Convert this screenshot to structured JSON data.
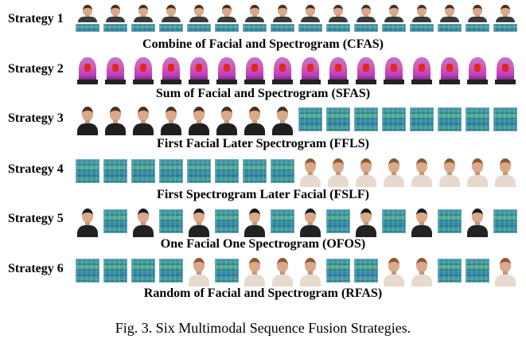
{
  "strategies": [
    {
      "label": "Strategy 1",
      "caption": "Combine of Facial and Spectrogram (CFAS)",
      "tiles": [
        "fs",
        "fs",
        "fs",
        "fs",
        "fs",
        "fs",
        "fs",
        "fs",
        "fs",
        "fs",
        "fs",
        "fs",
        "fs",
        "fs",
        "fs",
        "fs"
      ]
    },
    {
      "label": "Strategy 2",
      "caption": "Sum of Facial and Spectrogram (SFAS)",
      "tiles": [
        "x",
        "x",
        "x",
        "x",
        "x",
        "x",
        "x",
        "x",
        "x",
        "x",
        "x",
        "x",
        "x",
        "x",
        "x",
        "x"
      ]
    },
    {
      "label": "Strategy 3",
      "caption": "First Facial Later Spectrogram (FFLS)",
      "tiles": [
        "f",
        "f",
        "f",
        "f",
        "f",
        "f",
        "f",
        "f",
        "s",
        "s",
        "s",
        "s",
        "s",
        "s",
        "s",
        "s"
      ]
    },
    {
      "label": "Strategy 4",
      "caption": "First Spectrogram Later Facial (FSLF)",
      "tiles": [
        "s",
        "s",
        "s",
        "s",
        "s",
        "s",
        "s",
        "s",
        "fb",
        "fb",
        "fb",
        "fb",
        "fb",
        "fb",
        "fb",
        "fb"
      ]
    },
    {
      "label": "Strategy 5",
      "caption": "One Facial One Spectrogram (OFOS)",
      "tiles": [
        "fd",
        "s",
        "fd",
        "s",
        "fd",
        "s",
        "fd",
        "s",
        "fd",
        "s",
        "fd",
        "s",
        "fd",
        "s",
        "fd",
        "s"
      ]
    },
    {
      "label": "Strategy 6",
      "caption": "Random of Facial and Spectrogram (RFAS)",
      "tiles": [
        "s",
        "s",
        "s",
        "s",
        "fb",
        "s",
        "fb",
        "fb",
        "fb",
        "s",
        "s",
        "fb",
        "fb",
        "s",
        "s",
        "fb"
      ]
    }
  ],
  "figure_caption": "Fig. 3.  Six Multimodal Sequence Fusion Strategies."
}
